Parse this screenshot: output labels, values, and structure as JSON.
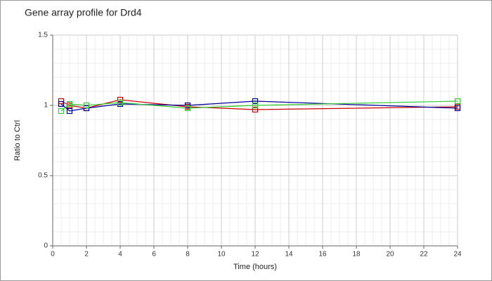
{
  "chart_data": {
    "type": "line",
    "title": "Gene array profile for Drd4",
    "xlabel": "Time (hours)",
    "ylabel": "Ratio to Ctrl",
    "x": [
      0.5,
      1,
      2,
      4,
      8,
      12,
      24
    ],
    "series": [
      {
        "color": "#cc0000",
        "values": [
          1.03,
          1.0,
          0.98,
          1.04,
          0.99,
          0.97,
          0.99
        ]
      },
      {
        "color": "#000099",
        "values": [
          1.01,
          0.96,
          0.98,
          1.01,
          1.0,
          1.03,
          0.98
        ]
      },
      {
        "color": "#33cc33",
        "values": [
          0.96,
          1.01,
          1.0,
          1.02,
          0.98,
          1.0,
          1.03
        ]
      }
    ],
    "xlim": [
      0,
      24
    ],
    "xticks": [
      0,
      2,
      4,
      6,
      8,
      10,
      12,
      14,
      16,
      18,
      20,
      22,
      24
    ],
    "ylim": [
      0,
      1.5
    ],
    "yticks": [
      0,
      0.5,
      1,
      1.5
    ],
    "grid": true
  }
}
